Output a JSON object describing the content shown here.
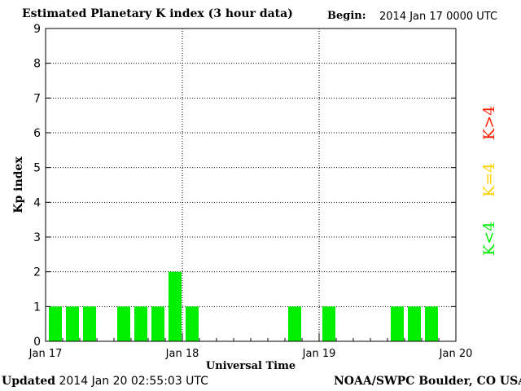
{
  "header": {
    "title": "Estimated Planetary K index (3 hour data)",
    "begin_label": "Begin:",
    "begin_value": "2014 Jan 17 0000 UTC"
  },
  "footer": {
    "updated_label": "Updated",
    "updated_value": "2014 Jan 20 02:55:03 UTC",
    "credit": "NOAA/SWPC Boulder, CO USA"
  },
  "legend": [
    {
      "label": "K>4",
      "color": "#ff2000"
    },
    {
      "label": "K=4",
      "color": "#ffd000"
    },
    {
      "label": "K<4",
      "color": "#00ee00"
    }
  ],
  "chart_data": {
    "type": "bar",
    "title": "Estimated Planetary K index (3 hour data)",
    "xlabel": "Universal Time",
    "ylabel": "Kp index",
    "ylim": [
      0,
      9
    ],
    "y_ticks": [
      "0",
      "1",
      "2",
      "3",
      "4",
      "5",
      "6",
      "7",
      "8",
      "9"
    ],
    "x_ticks": [
      "Jan 17",
      "Jan 18",
      "Jan 19",
      "Jan 20"
    ],
    "grid": true,
    "bar_color": "#00ee00",
    "categories": [
      "Jan 17 00",
      "Jan 17 03",
      "Jan 17 06",
      "Jan 17 09",
      "Jan 17 12",
      "Jan 17 15",
      "Jan 17 18",
      "Jan 17 21",
      "Jan 18 00",
      "Jan 18 03",
      "Jan 18 06",
      "Jan 18 09",
      "Jan 18 12",
      "Jan 18 15",
      "Jan 18 18",
      "Jan 18 21",
      "Jan 19 00",
      "Jan 19 03",
      "Jan 19 06",
      "Jan 19 09",
      "Jan 19 12",
      "Jan 19 15",
      "Jan 19 18",
      "Jan 19 21"
    ],
    "values": [
      1,
      1,
      1,
      null,
      1,
      1,
      1,
      2,
      1,
      null,
      null,
      null,
      null,
      null,
      1,
      null,
      1,
      null,
      null,
      null,
      1,
      1,
      1,
      null
    ]
  }
}
